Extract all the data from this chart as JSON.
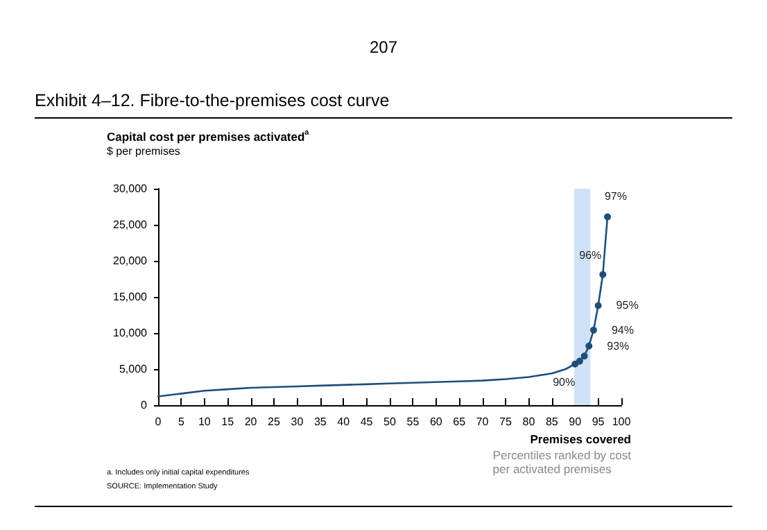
{
  "chart_data": {
    "type": "line",
    "title": "Exhibit 4–12. Fibre-to-the-premises cost curve",
    "ylabel": "Capital cost per premises activated$^{a}$",
    "xlabel": "Premises covered",
    "annotations": [
      "207",
      "$ per premises",
      "Percentiles ranked by cost\nper activated premises",
      "a. Includes only initial capital expenditures",
      "SOURCE: Implementation Study",
      {
        "text": "90%",
        "x": 90,
        "y": 5700
      },
      {
        "text": "93%",
        "x": 93,
        "y": 8200
      },
      {
        "text": "94%",
        "x": 94,
        "y": 10400
      },
      {
        "text": "95%",
        "x": 95,
        "y": 13800
      },
      {
        "text": "96%",
        "x": 96,
        "y": 18100
      },
      {
        "text": "97%",
        "x": 97,
        "y": 26100
      }
    ],
    "series": [
      {
        "color": "#1f4e79",
        "marker": "none",
        "x": [
          0,
          5,
          10,
          15,
          20,
          25,
          30,
          35,
          40,
          45,
          50,
          55,
          60,
          65,
          70,
          75,
          80,
          85,
          88,
          90
        ],
        "values": [
          1200,
          1600,
          2000,
          2200,
          2400,
          2500,
          2600,
          2700,
          2800,
          2900,
          3000,
          3100,
          3200,
          3300,
          3400,
          3600,
          3900,
          4400,
          5000,
          5700
        ]
      },
      {
        "color": "#1f4e79",
        "marker": "circle",
        "x": [
          90,
          91,
          92,
          93,
          94,
          95,
          96,
          97
        ],
        "values": [
          5700,
          6100,
          6800,
          8200,
          10400,
          13800,
          18100,
          26100
        ]
      }
    ],
    "xlim": [
      0,
      100
    ],
    "xticks": [
      0,
      5,
      10,
      15,
      20,
      25,
      30,
      35,
      40,
      45,
      50,
      55,
      60,
      65,
      70,
      75,
      80,
      85,
      90,
      95,
      100
    ],
    "ylim": [
      0,
      30000
    ],
    "yticks": [
      0,
      {
        "value": 5000,
        "label": "5,000"
      },
      {
        "value": 10000,
        "label": "10,000"
      },
      {
        "value": 15000,
        "label": "15,000"
      },
      {
        "value": 20000,
        "label": "20,000"
      },
      {
        "value": 25000,
        "label": "25,000"
      },
      {
        "value": 30000,
        "label": "30,000"
      }
    ],
    "bands": [
      {
        "axis": "x",
        "from": 89.8,
        "to": 93.3,
        "color": "#cfe2f7"
      }
    ],
    "grid": false,
    "line_style": "solid"
  }
}
